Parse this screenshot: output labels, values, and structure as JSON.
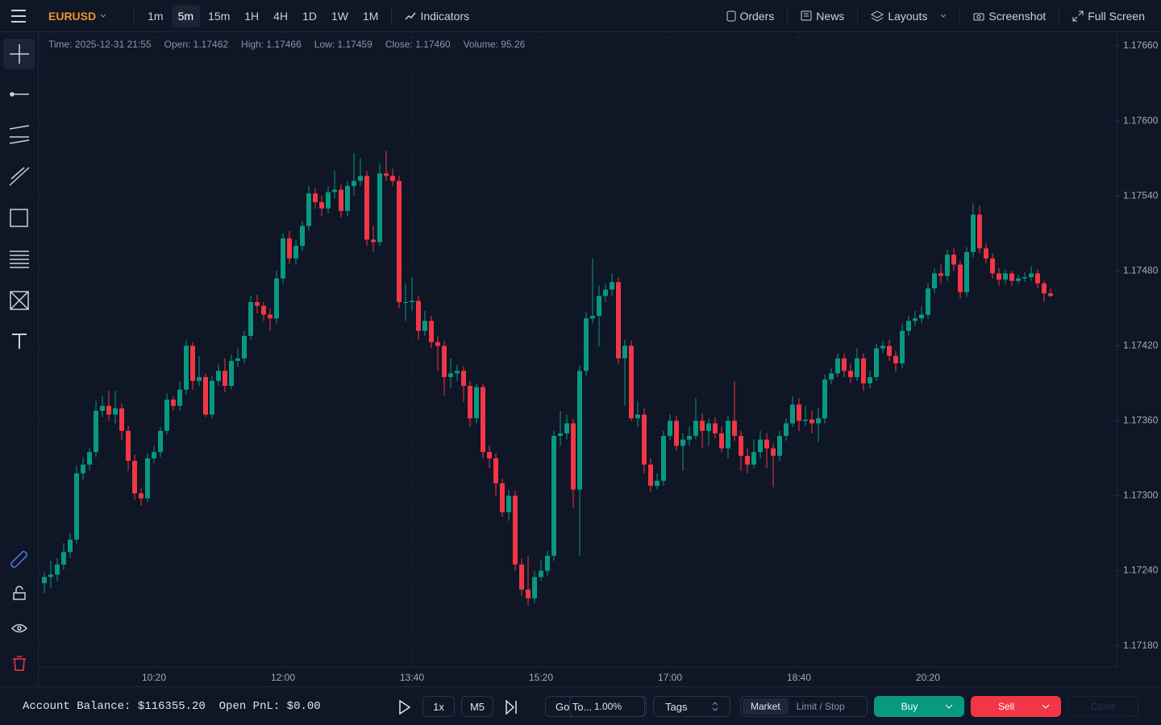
{
  "top_bar": {
    "symbol": "EURUSD",
    "timeframes": [
      "1m",
      "5m",
      "15m",
      "1H",
      "4H",
      "1D",
      "1W",
      "1M"
    ],
    "active_timeframe": 1,
    "indicators": "Indicators",
    "orders": "Orders",
    "news": "News",
    "layouts": "Layouts",
    "screenshot": "Screenshot",
    "full_screen": "Full Screen"
  },
  "ohlc_info": [
    "Time: 2025-12-31 21:55",
    "Open: 1.17462",
    "High: 1.17466",
    "Low: 1.17459",
    "Close: 1.17460",
    "Volume: 95.26"
  ],
  "chart_data": {
    "type": "candlestick",
    "up_color": "#089981",
    "down_color": "#f23645",
    "grid": true,
    "ylim": [
      1.17163,
      1.17671
    ],
    "yticks": [
      {
        "value": 1.1766,
        "label": "1.17660"
      },
      {
        "value": 1.176,
        "label": "1.17600"
      },
      {
        "value": 1.1754,
        "label": "1.17540"
      },
      {
        "value": 1.1748,
        "label": "1.17480"
      },
      {
        "value": 1.1742,
        "label": "1.17420"
      },
      {
        "value": 1.1736,
        "label": "1.17360"
      },
      {
        "value": 1.173,
        "label": "1.17300"
      },
      {
        "value": 1.1724,
        "label": "1.17240"
      },
      {
        "value": 1.1718,
        "label": "1.17180"
      }
    ],
    "xticks": [
      {
        "value": 17,
        "label": "10:20"
      },
      {
        "value": 37,
        "label": "12:00"
      },
      {
        "value": 57,
        "label": "13:40"
      },
      {
        "value": 77,
        "label": "15:20"
      },
      {
        "value": 97,
        "label": "17:00"
      },
      {
        "value": 117,
        "label": "18:40"
      },
      {
        "value": 137,
        "label": "20:20"
      }
    ],
    "candles": [
      [
        1.1723,
        1.17239,
        1.17222,
        1.17235
      ],
      [
        1.17235,
        1.17248,
        1.17226,
        1.17237
      ],
      [
        1.17237,
        1.1725,
        1.17232,
        1.17245
      ],
      [
        1.17245,
        1.17262,
        1.17241,
        1.17255
      ],
      [
        1.17255,
        1.1727,
        1.1725,
        1.17265
      ],
      [
        1.17265,
        1.17324,
        1.17262,
        1.17318
      ],
      [
        1.17318,
        1.17331,
        1.17313,
        1.17325
      ],
      [
        1.17325,
        1.17338,
        1.1732,
        1.17335
      ],
      [
        1.17335,
        1.17376,
        1.17331,
        1.17368
      ],
      [
        1.17368,
        1.1738,
        1.17363,
        1.17372
      ],
      [
        1.17372,
        1.17384,
        1.1736,
        1.17365
      ],
      [
        1.17365,
        1.17384,
        1.17358,
        1.1737
      ],
      [
        1.1737,
        1.17374,
        1.17345,
        1.17352
      ],
      [
        1.17352,
        1.17356,
        1.1732,
        1.17328
      ],
      [
        1.17328,
        1.17333,
        1.17297,
        1.17302
      ],
      [
        1.17302,
        1.17306,
        1.17292,
        1.17298
      ],
      [
        1.17298,
        1.17334,
        1.17295,
        1.1733
      ],
      [
        1.1733,
        1.1734,
        1.17326,
        1.17335
      ],
      [
        1.17335,
        1.17355,
        1.17331,
        1.17352
      ],
      [
        1.17352,
        1.17382,
        1.17349,
        1.17377
      ],
      [
        1.17377,
        1.1738,
        1.17368,
        1.17372
      ],
      [
        1.17372,
        1.17392,
        1.17368,
        1.17385
      ],
      [
        1.17385,
        1.17425,
        1.17381,
        1.1742
      ],
      [
        1.1742,
        1.17423,
        1.17385,
        1.17392
      ],
      [
        1.17392,
        1.17412,
        1.17388,
        1.17395
      ],
      [
        1.17395,
        1.17398,
        1.17363,
        1.17365
      ],
      [
        1.17365,
        1.17396,
        1.17362,
        1.17392
      ],
      [
        1.17392,
        1.17405,
        1.17388,
        1.174
      ],
      [
        1.174,
        1.1741,
        1.17383,
        1.17388
      ],
      [
        1.17388,
        1.17413,
        1.17385,
        1.17408
      ],
      [
        1.17408,
        1.17418,
        1.17403,
        1.1741
      ],
      [
        1.1741,
        1.17432,
        1.17406,
        1.17428
      ],
      [
        1.17428,
        1.1746,
        1.17425,
        1.17455
      ],
      [
        1.17455,
        1.17461,
        1.17446,
        1.17452
      ],
      [
        1.17452,
        1.17455,
        1.1744,
        1.17445
      ],
      [
        1.17445,
        1.1745,
        1.17432,
        1.17442
      ],
      [
        1.17442,
        1.1748,
        1.17438,
        1.17474
      ],
      [
        1.17474,
        1.1751,
        1.1747,
        1.17506
      ],
      [
        1.17506,
        1.17512,
        1.17486,
        1.1749
      ],
      [
        1.1749,
        1.17505,
        1.17485,
        1.175
      ],
      [
        1.175,
        1.1752,
        1.17496,
        1.17516
      ],
      [
        1.17516,
        1.17548,
        1.17512,
        1.17542
      ],
      [
        1.17542,
        1.17546,
        1.1753,
        1.17535
      ],
      [
        1.17535,
        1.1754,
        1.17524,
        1.1753
      ],
      [
        1.1753,
        1.17548,
        1.17526,
        1.17543
      ],
      [
        1.17543,
        1.1756,
        1.17538,
        1.17545
      ],
      [
        1.17545,
        1.17549,
        1.17523,
        1.17528
      ],
      [
        1.17528,
        1.17552,
        1.17524,
        1.17548
      ],
      [
        1.17548,
        1.17574,
        1.1754,
        1.17552
      ],
      [
        1.17552,
        1.1757,
        1.17548,
        1.17556
      ],
      [
        1.17556,
        1.1756,
        1.175,
        1.17505
      ],
      [
        1.17505,
        1.17516,
        1.17495,
        1.17503
      ],
      [
        1.17503,
        1.17566,
        1.175,
        1.17558
      ],
      [
        1.17558,
        1.17576,
        1.17552,
        1.17556
      ],
      [
        1.17556,
        1.17562,
        1.17548,
        1.17552
      ],
      [
        1.17552,
        1.17556,
        1.1745,
        1.17455
      ],
      [
        1.17455,
        1.1747,
        1.1744,
        1.17455
      ],
      [
        1.17455,
        1.17475,
        1.17448,
        1.17456
      ],
      [
        1.17456,
        1.1746,
        1.17425,
        1.17432
      ],
      [
        1.17432,
        1.17448,
        1.17428,
        1.1744
      ],
      [
        1.1744,
        1.17444,
        1.17418,
        1.17423
      ],
      [
        1.17423,
        1.17428,
        1.174,
        1.1742
      ],
      [
        1.1742,
        1.17424,
        1.1738,
        1.17395
      ],
      [
        1.17395,
        1.1741,
        1.17386,
        1.17398
      ],
      [
        1.17398,
        1.17405,
        1.17392,
        1.174
      ],
      [
        1.174,
        1.17404,
        1.17375,
        1.17388
      ],
      [
        1.17388,
        1.17392,
        1.17355,
        1.17362
      ],
      [
        1.17362,
        1.1739,
        1.17358,
        1.17387
      ],
      [
        1.17387,
        1.1739,
        1.1733,
        1.17335
      ],
      [
        1.17335,
        1.1734,
        1.17322,
        1.1733
      ],
      [
        1.1733,
        1.17334,
        1.173,
        1.1731
      ],
      [
        1.1731,
        1.17314,
        1.17283,
        1.17287
      ],
      [
        1.17287,
        1.17305,
        1.1728,
        1.173
      ],
      [
        1.173,
        1.17304,
        1.1724,
        1.17245
      ],
      [
        1.17245,
        1.1725,
        1.1722,
        1.17225
      ],
      [
        1.17225,
        1.17252,
        1.17212,
        1.17218
      ],
      [
        1.17218,
        1.1724,
        1.17214,
        1.17235
      ],
      [
        1.17235,
        1.17248,
        1.17232,
        1.1724
      ],
      [
        1.1724,
        1.17256,
        1.17236,
        1.17252
      ],
      [
        1.17252,
        1.17352,
        1.17248,
        1.17348
      ],
      [
        1.17348,
        1.17368,
        1.1734,
        1.1735
      ],
      [
        1.1735,
        1.17365,
        1.17345,
        1.17358
      ],
      [
        1.17358,
        1.17362,
        1.1729,
        1.17305
      ],
      [
        1.17305,
        1.17404,
        1.17252,
        1.174
      ],
      [
        1.174,
        1.17447,
        1.17396,
        1.17442
      ],
      [
        1.17442,
        1.1749,
        1.17438,
        1.17444
      ],
      [
        1.17444,
        1.17468,
        1.1742,
        1.1746
      ],
      [
        1.1746,
        1.1747,
        1.17455,
        1.17465
      ],
      [
        1.17465,
        1.17478,
        1.1746,
        1.17471
      ],
      [
        1.17471,
        1.17475,
        1.17405,
        1.1741
      ],
      [
        1.1741,
        1.17425,
        1.17372,
        1.1742
      ],
      [
        1.1742,
        1.17424,
        1.1736,
        1.17362
      ],
      [
        1.17362,
        1.17376,
        1.17355,
        1.17365
      ],
      [
        1.17365,
        1.1737,
        1.17318,
        1.17325
      ],
      [
        1.17325,
        1.1733,
        1.17303,
        1.17308
      ],
      [
        1.17308,
        1.17318,
        1.17305,
        1.17312
      ],
      [
        1.17312,
        1.17352,
        1.17308,
        1.17348
      ],
      [
        1.17348,
        1.17365,
        1.17344,
        1.1736
      ],
      [
        1.1736,
        1.17364,
        1.17336,
        1.1734
      ],
      [
        1.1734,
        1.1735,
        1.1732,
        1.17345
      ],
      [
        1.17345,
        1.17355,
        1.1734,
        1.17348
      ],
      [
        1.17348,
        1.17378,
        1.17345,
        1.1736
      ],
      [
        1.1736,
        1.17366,
        1.17338,
        1.17352
      ],
      [
        1.17352,
        1.17362,
        1.1734,
        1.17358
      ],
      [
        1.17358,
        1.17363,
        1.17346,
        1.1735
      ],
      [
        1.1735,
        1.17355,
        1.17335,
        1.17338
      ],
      [
        1.17338,
        1.17364,
        1.1733,
        1.1736
      ],
      [
        1.1736,
        1.17392,
        1.17344,
        1.17348
      ],
      [
        1.17348,
        1.17352,
        1.1732,
        1.17332
      ],
      [
        1.17332,
        1.17338,
        1.17318,
        1.17325
      ],
      [
        1.17325,
        1.17345,
        1.17322,
        1.17335
      ],
      [
        1.17335,
        1.17352,
        1.1733,
        1.17345
      ],
      [
        1.17345,
        1.1735,
        1.17322,
        1.17338
      ],
      [
        1.17338,
        1.17342,
        1.17307,
        1.17332
      ],
      [
        1.17332,
        1.17352,
        1.17328,
        1.17348
      ],
      [
        1.17348,
        1.17362,
        1.17344,
        1.17358
      ],
      [
        1.17358,
        1.1738,
        1.17355,
        1.17373
      ],
      [
        1.17373,
        1.17378,
        1.17352,
        1.1736
      ],
      [
        1.1736,
        1.17372,
        1.17356,
        1.17361
      ],
      [
        1.17361,
        1.17368,
        1.1735,
        1.17358
      ],
      [
        1.17358,
        1.1737,
        1.17343,
        1.17362
      ],
      [
        1.17362,
        1.17397,
        1.17358,
        1.17393
      ],
      [
        1.17393,
        1.17402,
        1.17389,
        1.17398
      ],
      [
        1.17398,
        1.17414,
        1.17395,
        1.1741
      ],
      [
        1.1741,
        1.17414,
        1.17395,
        1.174
      ],
      [
        1.174,
        1.17406,
        1.1739,
        1.17395
      ],
      [
        1.17395,
        1.17418,
        1.17392,
        1.1741
      ],
      [
        1.1741,
        1.17414,
        1.17384,
        1.1739
      ],
      [
        1.1739,
        1.174,
        1.17386,
        1.17395
      ],
      [
        1.17395,
        1.17422,
        1.17392,
        1.17418
      ],
      [
        1.17418,
        1.17424,
        1.17414,
        1.1742
      ],
      [
        1.1742,
        1.17425,
        1.17408,
        1.17412
      ],
      [
        1.17412,
        1.17416,
        1.17399,
        1.17406
      ],
      [
        1.17406,
        1.17438,
        1.17402,
        1.17432
      ],
      [
        1.17432,
        1.17444,
        1.17428,
        1.1744
      ],
      [
        1.1744,
        1.17448,
        1.17436,
        1.17442
      ],
      [
        1.17442,
        1.17452,
        1.17438,
        1.17445
      ],
      [
        1.17445,
        1.1747,
        1.17442,
        1.17466
      ],
      [
        1.17466,
        1.17482,
        1.17462,
        1.17478
      ],
      [
        1.17478,
        1.17485,
        1.1747,
        1.17476
      ],
      [
        1.17476,
        1.17497,
        1.17472,
        1.17493
      ],
      [
        1.17493,
        1.17498,
        1.1748,
        1.17485
      ],
      [
        1.17485,
        1.17488,
        1.17458,
        1.17463
      ],
      [
        1.17463,
        1.17499,
        1.17459,
        1.17495
      ],
      [
        1.17495,
        1.17534,
        1.17491,
        1.17525
      ],
      [
        1.17525,
        1.17532,
        1.17494,
        1.17498
      ],
      [
        1.17498,
        1.17502,
        1.17486,
        1.1749
      ],
      [
        1.1749,
        1.17494,
        1.17474,
        1.17478
      ],
      [
        1.17478,
        1.17482,
        1.17468,
        1.17473
      ],
      [
        1.17473,
        1.17481,
        1.1747,
        1.17478
      ],
      [
        1.17478,
        1.1748,
        1.17468,
        1.17472
      ],
      [
        1.17472,
        1.17477,
        1.1747,
        1.17474
      ],
      [
        1.17474,
        1.17479,
        1.17471,
        1.17475
      ],
      [
        1.17475,
        1.17484,
        1.17472,
        1.17478
      ],
      [
        1.17478,
        1.17481,
        1.17466,
        1.1747
      ],
      [
        1.1747,
        1.17472,
        1.17455,
        1.17462
      ],
      [
        1.17462,
        1.17466,
        1.17459,
        1.1746
      ]
    ]
  },
  "bottom_bar": {
    "account_balance": "Account Balance: $116355.20",
    "open_pnl": "Open PnL: $0.00",
    "speed": "1x",
    "timeframe": "M5",
    "go_to": "Go To...",
    "risk": "1.00%",
    "tags": "Tags",
    "market": "Market",
    "limit_stop": "Limit / Stop",
    "buy": "Buy",
    "sell": "Sell",
    "close": "Close"
  }
}
